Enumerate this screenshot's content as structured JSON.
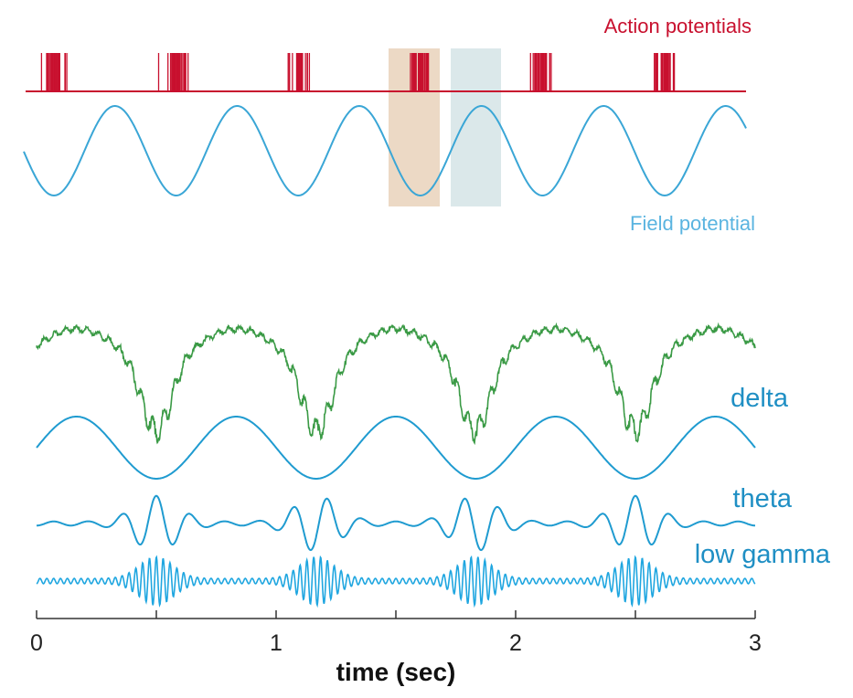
{
  "chart_data": [
    {
      "type": "line",
      "panel": "top",
      "series": [
        {
          "name": "Action potentials",
          "kind": "spike raster",
          "bursts_per_cycle": 1,
          "burst_phase": "field potential trough",
          "color": "#c8102e"
        },
        {
          "name": "Field potential",
          "kind": "sinusoid",
          "cycles_shown": 6,
          "color": "#3aa6d6"
        }
      ],
      "highlight_bands": [
        {
          "color": "#e8cfb4",
          "phase": "trough"
        },
        {
          "color": "#d4e3e6",
          "phase": "peak"
        }
      ],
      "labels": {
        "action_potentials": "Action potentials",
        "field_potential": "Field potential"
      }
    },
    {
      "type": "line",
      "panel": "bottom",
      "xlabel": "time (sec)",
      "xlim": [
        0,
        3
      ],
      "xticks": [
        0,
        0.5,
        1,
        1.5,
        2,
        2.5,
        3
      ],
      "xticklabels": [
        "0",
        "",
        "1",
        "",
        "2",
        "",
        "3"
      ],
      "grid": false,
      "series": [
        {
          "name": "",
          "kind": "raw signal",
          "color": "#3a9a45",
          "dip_times": [
            0.5,
            1.17,
            1.83,
            2.5
          ]
        },
        {
          "name": "delta",
          "frequency_hz": 1.5,
          "peak_times": [
            0.17,
            0.83,
            1.5,
            2.17,
            2.83
          ],
          "color": "#1f9bd0"
        },
        {
          "name": "theta",
          "frequency_hz": 7,
          "burst_times": [
            0.5,
            1.17,
            1.83,
            2.5
          ],
          "color": "#1f9bd0"
        },
        {
          "name": "low gamma",
          "frequency_hz": 35,
          "burst_times": [
            0.5,
            1.17,
            1.83,
            2.5
          ],
          "color": "#1f9bd0"
        }
      ],
      "labels": {
        "delta": "delta",
        "theta": "theta",
        "low_gamma": "low gamma"
      }
    }
  ]
}
